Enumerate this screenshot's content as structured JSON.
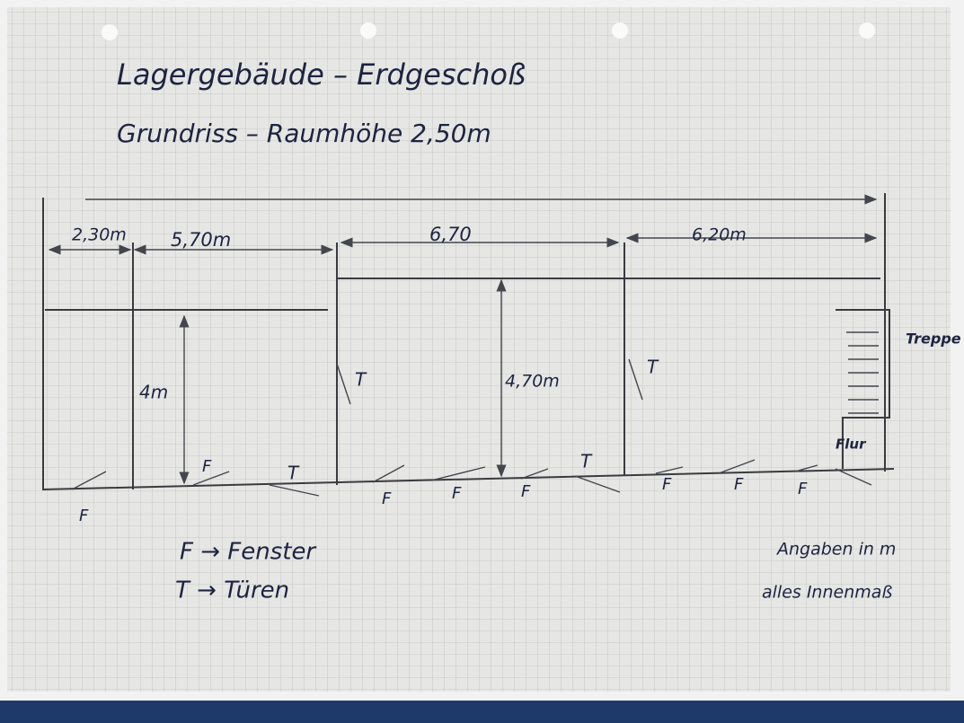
{
  "header": {
    "title": "Lagergebäude – Erdgeschoß",
    "subtitle": "Grundriss – Raumhöhe 2,50m"
  },
  "dimensions": [
    "2,30m",
    "5,70m",
    "6,70",
    "6,20m",
    "4m",
    "4,70m"
  ],
  "rooms": {
    "stairs": "Treppe",
    "hall": "Flur"
  },
  "door_marks": [
    "T",
    "T",
    "T",
    "T"
  ],
  "window_marks": [
    "F",
    "F",
    "F",
    "F",
    "F",
    "F",
    "F",
    "F"
  ],
  "legend": [
    "F → Fenster",
    "T → Türen"
  ],
  "notes": [
    "Angaben in m",
    "alles Innenmaß"
  ]
}
